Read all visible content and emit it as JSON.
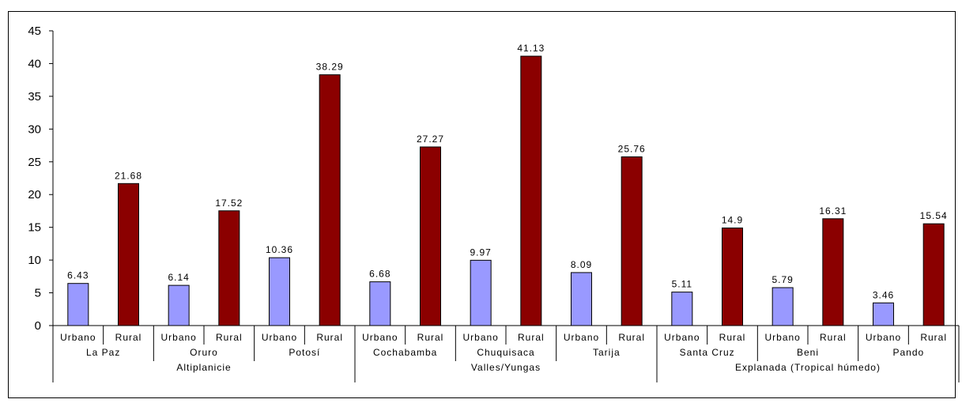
{
  "chart_data": {
    "type": "bar",
    "title": "",
    "xlabel": "",
    "ylabel": "",
    "ylim": [
      0,
      45
    ],
    "yticks": [
      0,
      5,
      10,
      15,
      20,
      25,
      30,
      35,
      40,
      45
    ],
    "series_colors": {
      "Urbano": "#9999ff",
      "Rural": "#8b0000"
    },
    "departments": [
      {
        "name": "La Paz",
        "values": {
          "Urbano": 6.43,
          "Rural": 21.68
        },
        "labels": {
          "Urbano": "6.43",
          "Rural": "21.68"
        }
      },
      {
        "name": "Oruro",
        "values": {
          "Urbano": 6.14,
          "Rural": 17.52
        },
        "labels": {
          "Urbano": "6.14",
          "Rural": "17.52"
        }
      },
      {
        "name": "Potosí",
        "values": {
          "Urbano": 10.36,
          "Rural": 38.29
        },
        "labels": {
          "Urbano": "10.36",
          "Rural": "38.29"
        }
      },
      {
        "name": "Cochabamba",
        "values": {
          "Urbano": 6.68,
          "Rural": 27.27
        },
        "labels": {
          "Urbano": "6.68",
          "Rural": "27.27"
        }
      },
      {
        "name": "Chuquisaca",
        "values": {
          "Urbano": 9.97,
          "Rural": 41.13
        },
        "labels": {
          "Urbano": "9.97",
          "Rural": "41.13"
        }
      },
      {
        "name": "Tarija",
        "values": {
          "Urbano": 8.09,
          "Rural": 25.76
        },
        "labels": {
          "Urbano": "8.09",
          "Rural": "25.76"
        }
      },
      {
        "name": "Santa Cruz",
        "values": {
          "Urbano": 5.11,
          "Rural": 14.9
        },
        "labels": {
          "Urbano": "5.11",
          "Rural": "14.9"
        }
      },
      {
        "name": "Beni",
        "values": {
          "Urbano": 5.79,
          "Rural": 16.31
        },
        "labels": {
          "Urbano": "5.79",
          "Rural": "16.31"
        }
      },
      {
        "name": "Pando",
        "values": {
          "Urbano": 3.46,
          "Rural": 15.54
        },
        "labels": {
          "Urbano": "3.46",
          "Rural": "15.54"
        }
      }
    ],
    "regions": [
      {
        "name": "Altiplanicie",
        "departments": [
          "La Paz",
          "Oruro",
          "Potosí"
        ]
      },
      {
        "name": "Valles/Yungas",
        "departments": [
          "Cochabamba",
          "Chuquisaca",
          "Tarija"
        ]
      },
      {
        "name": "Explanada (Tropical húmedo)",
        "departments": [
          "Santa Cruz",
          "Beni",
          "Pando"
        ]
      }
    ],
    "category_labels": [
      "Urbano",
      "Rural"
    ],
    "grid": false,
    "legend": "none"
  }
}
